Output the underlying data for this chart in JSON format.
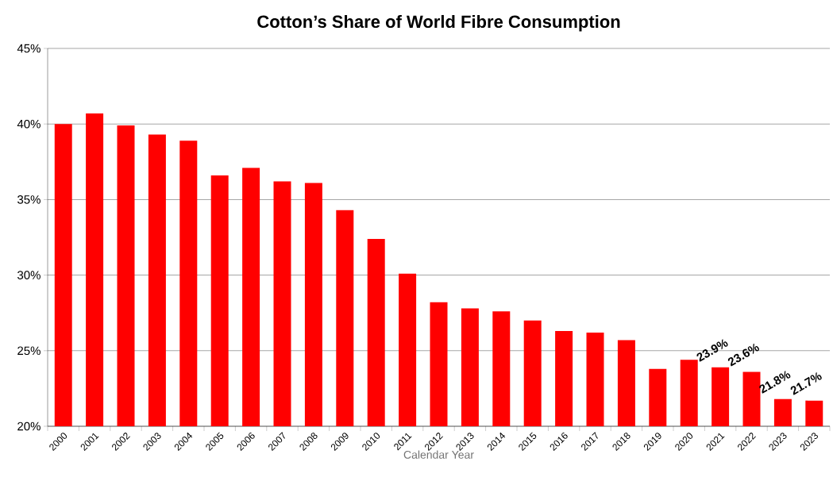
{
  "chart_data": {
    "type": "bar",
    "title": "Cotton’s Share of World Fibre Consumption",
    "xlabel": "Calendar Year",
    "categories": [
      "2000",
      "2001",
      "2002",
      "2003",
      "2004",
      "2005",
      "2006",
      "2007",
      "2008",
      "2009",
      "2010",
      "2011",
      "2012",
      "2013",
      "2014",
      "2015",
      "2016",
      "2017",
      "2018",
      "2019",
      "2020",
      "2021",
      "2022",
      "2023",
      "2023"
    ],
    "values": [
      40.0,
      40.7,
      39.9,
      39.3,
      38.9,
      36.6,
      37.1,
      36.2,
      36.1,
      34.3,
      32.4,
      30.1,
      28.2,
      27.8,
      27.6,
      27.0,
      26.3,
      26.2,
      25.7,
      23.8,
      24.4,
      23.9,
      23.6,
      21.8,
      21.7
    ],
    "value_labels": [
      null,
      null,
      null,
      null,
      null,
      null,
      null,
      null,
      null,
      null,
      null,
      null,
      null,
      null,
      null,
      null,
      null,
      null,
      null,
      null,
      null,
      "23.9%",
      "23.6%",
      "21.8%",
      "21.7%"
    ],
    "color": "#ff0000",
    "ylim": [
      20,
      45
    ],
    "yticks": [
      {
        "value": 20,
        "label": "20%"
      },
      {
        "value": 25,
        "label": "25%"
      },
      {
        "value": 30,
        "label": "30%"
      },
      {
        "value": 35,
        "label": "35%"
      },
      {
        "value": 40,
        "label": "40%"
      },
      {
        "value": 45,
        "label": "45%"
      }
    ],
    "grid": "y"
  }
}
